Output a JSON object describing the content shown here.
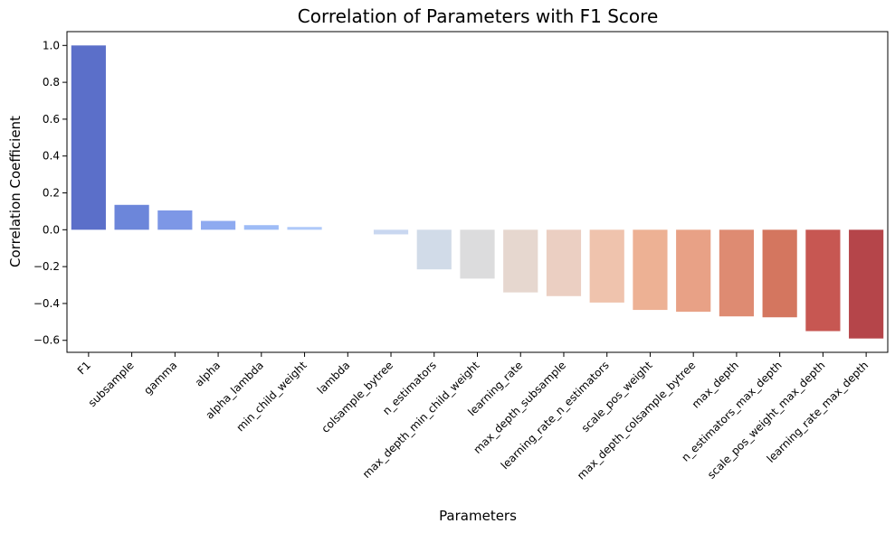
{
  "chart_data": {
    "type": "bar",
    "title": "Correlation of Parameters with F1 Score",
    "xlabel": "Parameters",
    "ylabel": "Correlation Coefficient",
    "ylim": [
      -0.665,
      1.075
    ],
    "yticks": [
      "1.0",
      "0.8",
      "0.6",
      "0.4",
      "0.2",
      "0.0",
      "−0.2",
      "−0.4",
      "−0.6"
    ],
    "ytick_values": [
      1.0,
      0.8,
      0.6,
      0.4,
      0.2,
      0.0,
      -0.2,
      -0.4,
      -0.6
    ],
    "grid": false,
    "legend": "none",
    "colormap": "coolwarm",
    "categories": [
      "F1",
      "subsample",
      "gamma",
      "alpha",
      "alpha_lambda",
      "min_child_weight",
      "lambda",
      "colsample_bytree",
      "n_estimators",
      "max_depth_min_child_weight",
      "learning_rate",
      "max_depth_subsample",
      "learning_rate_n_estimators",
      "scale_pos_weight",
      "max_depth_colsample_bytree",
      "max_depth",
      "n_estimators_max_depth",
      "scale_pos_weight_max_depth",
      "learning_rate_max_depth"
    ],
    "values": [
      1.0,
      0.135,
      0.105,
      0.048,
      0.025,
      0.015,
      0.0,
      -0.025,
      -0.215,
      -0.265,
      -0.34,
      -0.36,
      -0.395,
      -0.435,
      -0.445,
      -0.47,
      -0.475,
      -0.55,
      -0.59
    ],
    "colors": [
      "#5b6fc9",
      "#6c86da",
      "#7d97e6",
      "#8eaaf0",
      "#9ebcf6",
      "#afc9f9",
      "#c0d4f5",
      "#c9d7f0",
      "#d1dbe8",
      "#dcdcdd",
      "#e6d7cf",
      "#ebcfc2",
      "#efc3ad",
      "#edb194",
      "#e8a186",
      "#de8b72",
      "#d4765f",
      "#c75752",
      "#b5454a"
    ]
  }
}
